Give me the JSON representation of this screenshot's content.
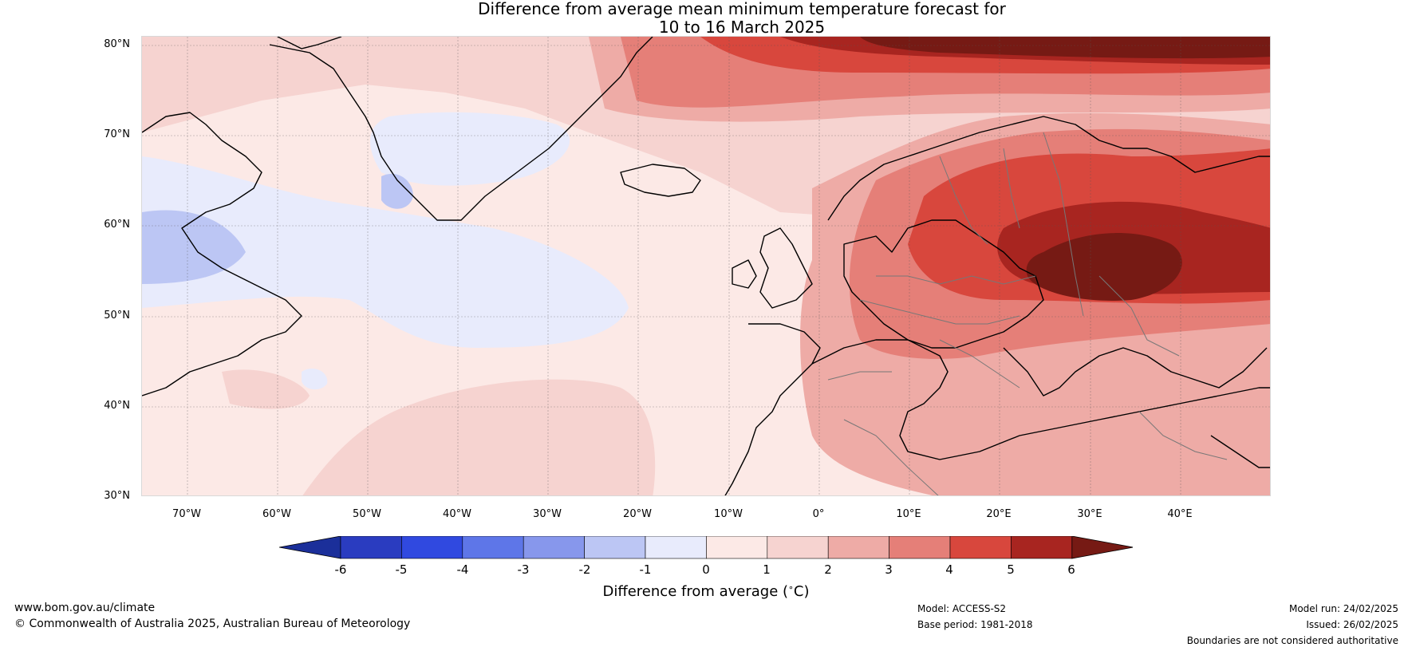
{
  "title": {
    "line1": "Difference from average mean minimum temperature forecast for",
    "line2": "10 to 16 March 2025"
  },
  "map": {
    "lat_labels": [
      "80°N",
      "70°N",
      "60°N",
      "50°N",
      "40°N",
      "30°N"
    ],
    "lon_labels": [
      "70°W",
      "60°W",
      "50°W",
      "40°W",
      "30°W",
      "20°W",
      "10°W",
      "0°",
      "10°E",
      "20°E",
      "30°E",
      "40°E"
    ],
    "lat_range": [
      30,
      81
    ],
    "lon_range": [
      -75,
      50
    ]
  },
  "colorbar": {
    "title": "Difference from average (",
    "title_symbol": "∘",
    "title_unit": "C)",
    "tick_labels": [
      "-6",
      "-5",
      "-4",
      "-3",
      "-2",
      "-1",
      "0",
      "1",
      "2",
      "3",
      "4",
      "5",
      "6"
    ],
    "colors": [
      "#1b2f9a",
      "#2a3cc0",
      "#3049e0",
      "#5e76e8",
      "#8797ec",
      "#bcc6f4",
      "#e8ebfc",
      "#fce9e6",
      "#f6d3d0",
      "#eeaba6",
      "#e57f78",
      "#d8473d",
      "#a82520",
      "#761a14"
    ]
  },
  "footer": {
    "website": "www.bom.gov.au/climate",
    "copyright": "© Commonwealth of Australia 2025, Australian Bureau of Meteorology",
    "model": "Model: ACCESS-S2",
    "base_period": "Base period: 1981-2018",
    "model_run": "Model run: 24/02/2025",
    "issued": "Issued: 26/02/2025",
    "disclaimer": "Boundaries are not considered authoritative"
  }
}
